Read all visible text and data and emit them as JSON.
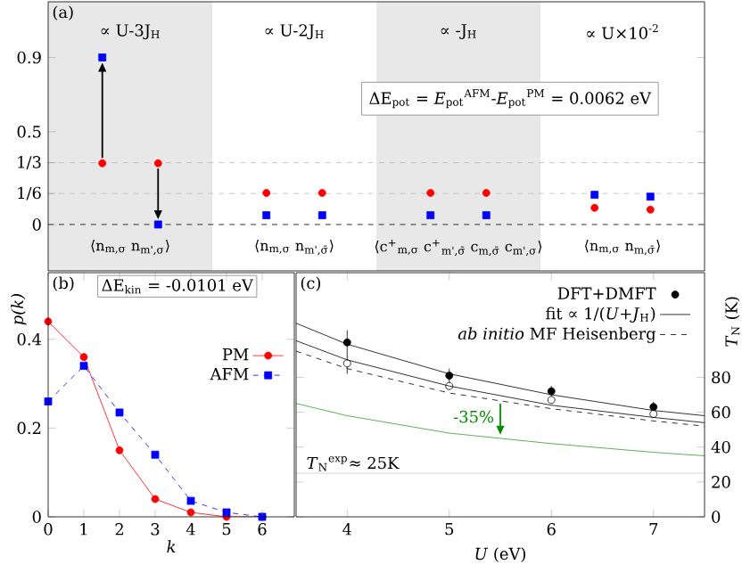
{
  "chart_data": [
    {
      "type": "scatter",
      "categories": [
        "⟨n$_{m,σ}$ n$_{m',σ}$⟩",
        "⟨n$_{m,σ}$ n$_{m',σ̄}$⟩",
        "⟨c$^{+}$$_{m,σ}$ c$^{+}$$_{m',σ̄}$ c$_{m,σ̄}$ c$_{m',σ}$⟩",
        "⟨n$_{m,σ}$ n$_{m,σ̄}$⟩"
      ],
      "series": [
        {
          "color": "#ff0000",
          "marker": "circle",
          "values": [
            0.33,
            0.17,
            0.17,
            0.09
          ]
        },
        {
          "color": "#ff0000",
          "marker": "circle",
          "values": [
            0.33,
            0.17,
            0.17,
            0.08
          ]
        },
        {
          "color": "#0000ff",
          "marker": "square",
          "values": [
            0.9,
            0.05,
            0.05,
            0.16
          ]
        },
        {
          "color": "#0000ff",
          "marker": "square",
          "values": [
            0,
            0.05,
            0.05,
            0.15
          ]
        }
      ],
      "ylim": [
        -0.25,
        1.2
      ],
      "yticks": [
        0,
        {
          "value": 0.167,
          "label": "1/6"
        },
        {
          "value": 0.333,
          "label": "1/3"
        },
        0.5,
        0.9
      ],
      "ref_lines": [
        {
          "axis": "y",
          "value": 0.333,
          "color": "#bbbbbb",
          "line_style": "dashed"
        },
        {
          "axis": "y",
          "value": 0.167,
          "color": "#bbbbbb",
          "line_style": "dashed"
        },
        {
          "axis": "y",
          "value": 0,
          "color": "#000000",
          "line_style": "dashed"
        }
      ],
      "annotations": [
        "∝ U-3J$_{H}$",
        "∝ U-2J$_{H}$",
        "∝ -J$_{H}$",
        "∝ U×10$^{-2}$",
        "(a)",
        "ΔE$_{pot}$ = *E*$_{pot}$$^{AFM}$-*E*$_{pot}$$^{PM}$ = 0.0062 eV"
      ]
    },
    {
      "type": "line",
      "x": [
        0,
        1,
        2,
        3,
        4,
        5,
        6
      ],
      "series": [
        {
          "name": "PM",
          "color": "#ff0000",
          "marker": "circle",
          "line_style": "solid",
          "values": [
            0.44,
            0.36,
            0.15,
            0.04,
            0.01,
            0,
            0
          ]
        },
        {
          "name": "AFM",
          "color": "#0000ff",
          "marker": "square",
          "line_style": "dashed",
          "values": [
            0.26,
            0.34,
            0.235,
            0.14,
            0.036,
            0.01,
            0
          ]
        }
      ],
      "xlim": [
        0,
        6.9
      ],
      "ylim": [
        0,
        0.55
      ],
      "xticks": [
        0,
        1,
        2,
        3,
        4,
        5,
        6
      ],
      "yticks": [
        0,
        0.2,
        0.4
      ],
      "xlabel": "k",
      "ylabel": "p(k)",
      "legend": "right",
      "annotations": [
        "(b)",
        "ΔE$_{kin}$ = -0.0101 eV"
      ]
    },
    {
      "type": "line",
      "series": [
        {
          "name": "DFT+DMFT",
          "type": "scatter",
          "color": "#000000",
          "marker": "circle",
          "x": [
            4,
            5,
            6,
            7
          ],
          "values": [
            100,
            81,
            72,
            63
          ],
          "errors": [
            [
              82,
              107
            ],
            [
              73,
              85
            ],
            [
              65,
              75
            ],
            [
              57,
              66
            ]
          ]
        },
        {
          "type": "scatter",
          "color": "#ffffff",
          "marker": "circle",
          "x": [
            4,
            5,
            6,
            7
          ],
          "values": [
            88,
            75,
            67,
            59
          ]
        },
        {
          "name": "fit ∝ 1/(*U*+*J*$_{H}$)",
          "color": "#000000",
          "line_style": "solid",
          "x": [
            3.5,
            4,
            5,
            6,
            7,
            7.5
          ],
          "values": [
            111,
            99,
            82,
            70,
            61,
            58
          ]
        },
        {
          "color": "#000000",
          "line_style": "solid",
          "x": [
            3.5,
            4,
            5,
            6,
            7,
            7.5
          ],
          "values": [
            101,
            90,
            75,
            64,
            57,
            54
          ]
        },
        {
          "name": "*ab initio* MF Heisenberg",
          "color": "#000000",
          "line_style": "dashed",
          "x": [
            3.5,
            4,
            5,
            6,
            7,
            7.5
          ],
          "values": [
            95,
            85,
            71,
            62,
            55,
            52
          ]
        },
        {
          "color": "#33a02c",
          "line_style": "solid",
          "x": [
            3.5,
            4,
            5,
            6,
            7,
            7.5
          ],
          "values": [
            65,
            58,
            48,
            42,
            37,
            35
          ]
        }
      ],
      "xlim": [
        3.5,
        7.5
      ],
      "ylim": [
        0,
        140
      ],
      "xticks": [
        4,
        5,
        6,
        7
      ],
      "yticks": [
        0,
        20,
        40,
        60,
        80
      ],
      "xlabel": "*U* (eV)",
      "ylabel": "*T*$_{N}$ (K)",
      "legend": "top right",
      "ref_lines": [
        {
          "axis": "y",
          "value": 25,
          "color": "#cccccc",
          "label": "*T*$_{N}$$^{exp}$≈ 25K"
        }
      ],
      "annotations": [
        "(c)",
        "-35%"
      ]
    }
  ]
}
